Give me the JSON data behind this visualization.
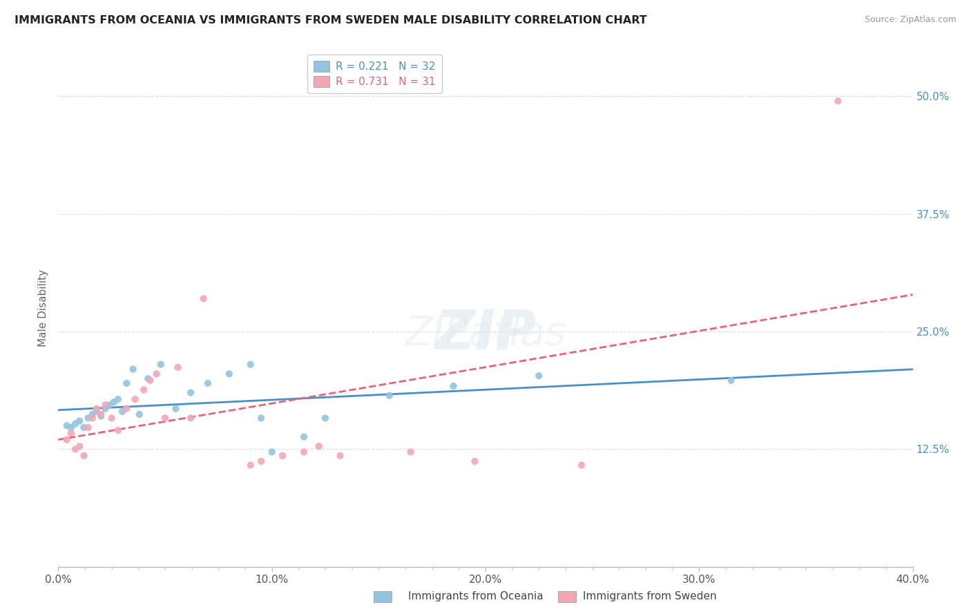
{
  "title": "IMMIGRANTS FROM OCEANIA VS IMMIGRANTS FROM SWEDEN MALE DISABILITY CORRELATION CHART",
  "source": "Source: ZipAtlas.com",
  "ylabel": "Male Disability",
  "xlim": [
    0.0,
    0.4
  ],
  "ylim": [
    0.0,
    0.55
  ],
  "xtick_labels": [
    "0.0%",
    "",
    "",
    "",
    "",
    "",
    "",
    "",
    "10.0%",
    "",
    "",
    "",
    "",
    "",
    "",
    "",
    "20.0%",
    "",
    "",
    "",
    "",
    "",
    "",
    "",
    "30.0%",
    "",
    "",
    "",
    "",
    "",
    "",
    "",
    "40.0%"
  ],
  "xtick_vals": [
    0.0,
    0.0125,
    0.025,
    0.0375,
    0.05,
    0.0625,
    0.075,
    0.0875,
    0.1,
    0.1125,
    0.125,
    0.1375,
    0.15,
    0.1625,
    0.175,
    0.1875,
    0.2,
    0.2125,
    0.225,
    0.2375,
    0.25,
    0.2625,
    0.275,
    0.2875,
    0.3,
    0.3125,
    0.325,
    0.3375,
    0.35,
    0.3625,
    0.375,
    0.3875,
    0.4
  ],
  "ytick_labels": [
    "12.5%",
    "25.0%",
    "37.5%",
    "50.0%"
  ],
  "ytick_vals": [
    0.125,
    0.25,
    0.375,
    0.5
  ],
  "watermark": "ZIPatlas",
  "series1_color": "#92c5de",
  "series2_color": "#f4a6b5",
  "series1_label": "Immigrants from Oceania",
  "series2_label": "Immigrants from Sweden",
  "series1_R": "0.221",
  "series1_N": "32",
  "series2_R": "0.731",
  "series2_N": "31",
  "line1_color": "#4a90c4",
  "line2_color": "#e8637a",
  "series1_x": [
    0.004,
    0.006,
    0.008,
    0.01,
    0.012,
    0.014,
    0.016,
    0.018,
    0.02,
    0.022,
    0.024,
    0.026,
    0.028,
    0.03,
    0.032,
    0.035,
    0.038,
    0.042,
    0.048,
    0.055,
    0.062,
    0.07,
    0.08,
    0.09,
    0.095,
    0.1,
    0.115,
    0.125,
    0.155,
    0.185,
    0.225,
    0.315
  ],
  "series1_y": [
    0.15,
    0.148,
    0.152,
    0.155,
    0.148,
    0.158,
    0.162,
    0.165,
    0.16,
    0.168,
    0.172,
    0.175,
    0.178,
    0.165,
    0.195,
    0.21,
    0.162,
    0.2,
    0.215,
    0.168,
    0.185,
    0.195,
    0.205,
    0.215,
    0.158,
    0.122,
    0.138,
    0.158,
    0.182,
    0.192,
    0.203,
    0.198
  ],
  "series2_x": [
    0.004,
    0.006,
    0.008,
    0.01,
    0.012,
    0.014,
    0.016,
    0.018,
    0.02,
    0.022,
    0.025,
    0.028,
    0.032,
    0.036,
    0.04,
    0.043,
    0.046,
    0.05,
    0.056,
    0.062,
    0.068,
    0.09,
    0.095,
    0.105,
    0.115,
    0.122,
    0.132,
    0.165,
    0.195,
    0.245,
    0.365
  ],
  "series2_y": [
    0.135,
    0.142,
    0.125,
    0.128,
    0.118,
    0.148,
    0.158,
    0.168,
    0.162,
    0.172,
    0.158,
    0.145,
    0.168,
    0.178,
    0.188,
    0.198,
    0.205,
    0.158,
    0.212,
    0.158,
    0.285,
    0.108,
    0.112,
    0.118,
    0.122,
    0.128,
    0.118,
    0.122,
    0.112,
    0.108,
    0.495
  ]
}
